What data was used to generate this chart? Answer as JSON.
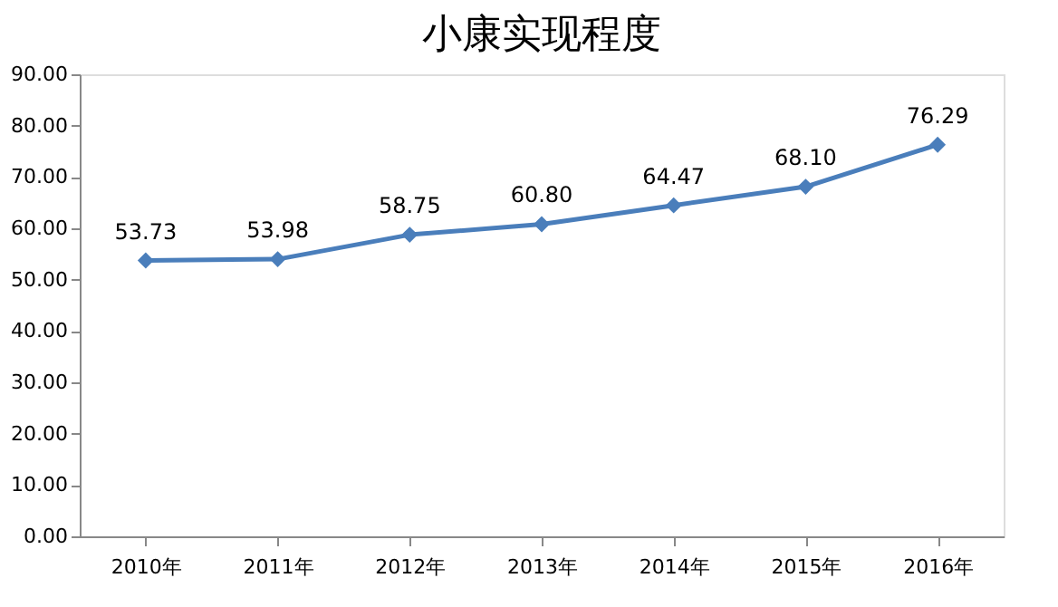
{
  "chart_data": {
    "type": "line",
    "title": "小康实现程度",
    "categories": [
      "2010年",
      "2011年",
      "2012年",
      "2013年",
      "2014年",
      "2015年",
      "2016年"
    ],
    "series": [
      {
        "color": "#4a7ebb",
        "values": [
          53.73,
          53.98,
          58.75,
          60.8,
          64.47,
          68.1,
          76.29
        ],
        "value_labels": [
          "53.73",
          "53.98",
          "58.75",
          "60.80",
          "64.47",
          "68.10",
          "76.29"
        ]
      }
    ],
    "ylim": [
      0,
      90
    ],
    "yticks": [
      {
        "value": 0,
        "label": "0.00"
      },
      {
        "value": 10,
        "label": "10.00"
      },
      {
        "value": 20,
        "label": "20.00"
      },
      {
        "value": 30,
        "label": "30.00"
      },
      {
        "value": 40,
        "label": "40.00"
      },
      {
        "value": 50,
        "label": "50.00"
      },
      {
        "value": 60,
        "label": "60.00"
      },
      {
        "value": 70,
        "label": "70.00"
      },
      {
        "value": 80,
        "label": "80.00"
      },
      {
        "value": 90,
        "label": "90.00"
      }
    ],
    "grid": false,
    "marker": "diamond",
    "line_style": "solid"
  }
}
